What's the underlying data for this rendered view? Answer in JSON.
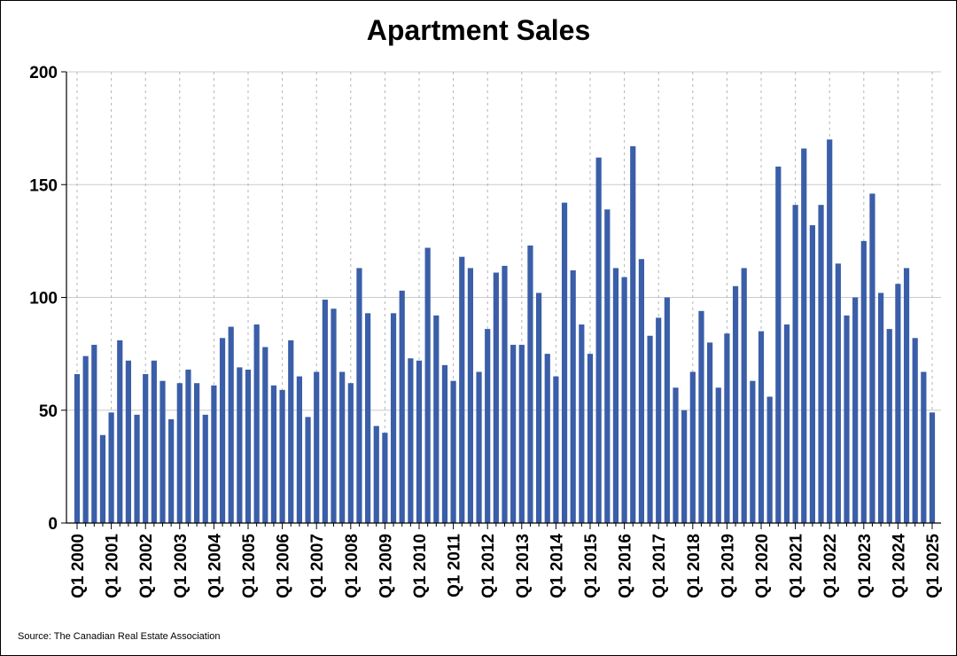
{
  "title": "Apartment Sales",
  "source": "Source: The Canadian Real Estate Association",
  "colors": {
    "bar": "#3a5ea8",
    "grid_h": "#cccccc",
    "grid_v": "#b4b4b4",
    "axis": "#000000"
  },
  "chart_data": {
    "type": "bar",
    "title": "Apartment Sales",
    "xlabel": "",
    "ylabel": "",
    "ylim": [
      0,
      200
    ],
    "yticks": [
      0,
      50,
      100,
      150,
      200
    ],
    "grid": "horizontal solid at y ticks; vertical dashed at each Q1",
    "legend": "none",
    "x_tick_labels": [
      "Q1 2000",
      "Q1 2001",
      "Q1 2002",
      "Q1 2003",
      "Q1 2004",
      "Q1 2005",
      "Q1 2006",
      "Q1 2007",
      "Q1 2008",
      "Q1 2009",
      "Q1 2010",
      "Q1 2011",
      "Q1 2012",
      "Q1 2013",
      "Q1 2014",
      "Q1 2015",
      "Q1 2016",
      "Q1 2017",
      "Q1 2018",
      "Q1 2019",
      "Q1 2020",
      "Q1 2021",
      "Q1 2022",
      "Q1 2023",
      "Q1 2024",
      "Q1 2025"
    ],
    "categories": [
      "Q1 2000",
      "Q2 2000",
      "Q3 2000",
      "Q4 2000",
      "Q1 2001",
      "Q2 2001",
      "Q3 2001",
      "Q4 2001",
      "Q1 2002",
      "Q2 2002",
      "Q3 2002",
      "Q4 2002",
      "Q1 2003",
      "Q2 2003",
      "Q3 2003",
      "Q4 2003",
      "Q1 2004",
      "Q2 2004",
      "Q3 2004",
      "Q4 2004",
      "Q1 2005",
      "Q2 2005",
      "Q3 2005",
      "Q4 2005",
      "Q1 2006",
      "Q2 2006",
      "Q3 2006",
      "Q4 2006",
      "Q1 2007",
      "Q2 2007",
      "Q3 2007",
      "Q4 2007",
      "Q1 2008",
      "Q2 2008",
      "Q3 2008",
      "Q4 2008",
      "Q1 2009",
      "Q2 2009",
      "Q3 2009",
      "Q4 2009",
      "Q1 2010",
      "Q2 2010",
      "Q3 2010",
      "Q4 2010",
      "Q1 2011",
      "Q2 2011",
      "Q3 2011",
      "Q4 2011",
      "Q1 2012",
      "Q2 2012",
      "Q3 2012",
      "Q4 2012",
      "Q1 2013",
      "Q2 2013",
      "Q3 2013",
      "Q4 2013",
      "Q1 2014",
      "Q2 2014",
      "Q3 2014",
      "Q4 2014",
      "Q1 2015",
      "Q2 2015",
      "Q3 2015",
      "Q4 2015",
      "Q1 2016",
      "Q2 2016",
      "Q3 2016",
      "Q4 2016",
      "Q1 2017",
      "Q2 2017",
      "Q3 2017",
      "Q4 2017",
      "Q1 2018",
      "Q2 2018",
      "Q3 2018",
      "Q4 2018",
      "Q1 2019",
      "Q2 2019",
      "Q3 2019",
      "Q4 2019",
      "Q1 2020",
      "Q2 2020",
      "Q3 2020",
      "Q4 2020",
      "Q1 2021",
      "Q2 2021",
      "Q3 2021",
      "Q4 2021",
      "Q1 2022",
      "Q2 2022",
      "Q3 2022",
      "Q4 2022",
      "Q1 2023",
      "Q2 2023",
      "Q3 2023",
      "Q4 2023",
      "Q1 2024",
      "Q2 2024",
      "Q3 2024",
      "Q4 2024",
      "Q1 2025"
    ],
    "values": [
      66,
      74,
      79,
      39,
      49,
      81,
      72,
      48,
      66,
      72,
      63,
      46,
      62,
      68,
      62,
      48,
      61,
      82,
      87,
      69,
      68,
      88,
      78,
      61,
      59,
      81,
      65,
      47,
      67,
      99,
      95,
      67,
      62,
      113,
      93,
      43,
      40,
      93,
      103,
      73,
      72,
      122,
      92,
      70,
      63,
      118,
      113,
      67,
      86,
      111,
      114,
      79,
      79,
      123,
      102,
      75,
      65,
      142,
      112,
      88,
      75,
      162,
      139,
      113,
      109,
      167,
      117,
      83,
      91,
      100,
      60,
      50,
      67,
      94,
      80,
      60,
      84,
      105,
      113,
      63,
      85,
      56,
      158,
      88,
      141,
      166,
      132,
      141,
      170,
      115,
      92,
      100,
      125,
      146,
      102,
      86,
      106,
      113,
      82,
      67,
      49
    ]
  }
}
